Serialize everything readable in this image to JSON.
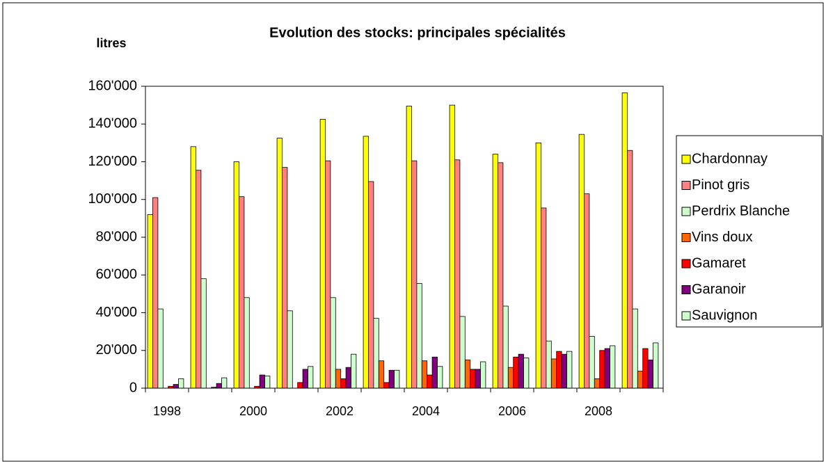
{
  "chart_data": {
    "type": "bar",
    "title": "Evolution des stocks: principales spécialités",
    "y_label": "litres",
    "categories": [
      "1998",
      null,
      "2000",
      null,
      "2002",
      null,
      "2004",
      null,
      "2006",
      null,
      "2008",
      null
    ],
    "series": [
      {
        "name": "Chardonnay",
        "color": "#FFFF00",
        "values": [
          92000,
          128000,
          120000,
          132500,
          142500,
          133500,
          149500,
          150000,
          124000,
          130000,
          134500,
          156500
        ]
      },
      {
        "name": "Pinot gris",
        "color": "#FF8080",
        "values": [
          101000,
          115500,
          101500,
          117000,
          120500,
          109500,
          120500,
          121000,
          119500,
          95500,
          103000,
          126000
        ]
      },
      {
        "name": "Perdrix Blanche",
        "color": "#CCFFCC",
        "values": [
          42000,
          58000,
          48000,
          41000,
          48000,
          37000,
          55500,
          38000,
          43500,
          25000,
          27500,
          42000
        ]
      },
      {
        "name": "Vins doux",
        "color": "#FF6600",
        "values": [
          0,
          0,
          0,
          0,
          10000,
          14500,
          14500,
          15000,
          11000,
          15500,
          5000,
          9000
        ]
      },
      {
        "name": "Gamaret",
        "color": "#FF0000",
        "values": [
          1000,
          500,
          1000,
          3000,
          5000,
          3000,
          7000,
          10000,
          16500,
          19500,
          20000,
          21000
        ]
      },
      {
        "name": "Garanoir",
        "color": "#800080",
        "values": [
          2000,
          2500,
          7000,
          10000,
          11000,
          9500,
          16500,
          10000,
          18000,
          18000,
          21000,
          15000
        ]
      },
      {
        "name": "Sauvignon",
        "color": "#CCFFCC",
        "values": [
          5000,
          5500,
          6500,
          11500,
          18000,
          9500,
          11500,
          14000,
          16000,
          19500,
          22500,
          24000
        ]
      }
    ],
    "ylim": [
      0,
      160000
    ],
    "yticks": [
      0,
      {
        "value": 20000,
        "label": "20'000"
      },
      {
        "value": 40000,
        "label": "40'000"
      },
      {
        "value": 60000,
        "label": "60'000"
      },
      {
        "value": 80000,
        "label": "80'000"
      },
      {
        "value": 100000,
        "label": "100'000"
      },
      {
        "value": 120000,
        "label": "120'000"
      },
      {
        "value": 140000,
        "label": "140'000"
      },
      {
        "value": 160000,
        "label": "160'000"
      }
    ],
    "legend": "right"
  }
}
